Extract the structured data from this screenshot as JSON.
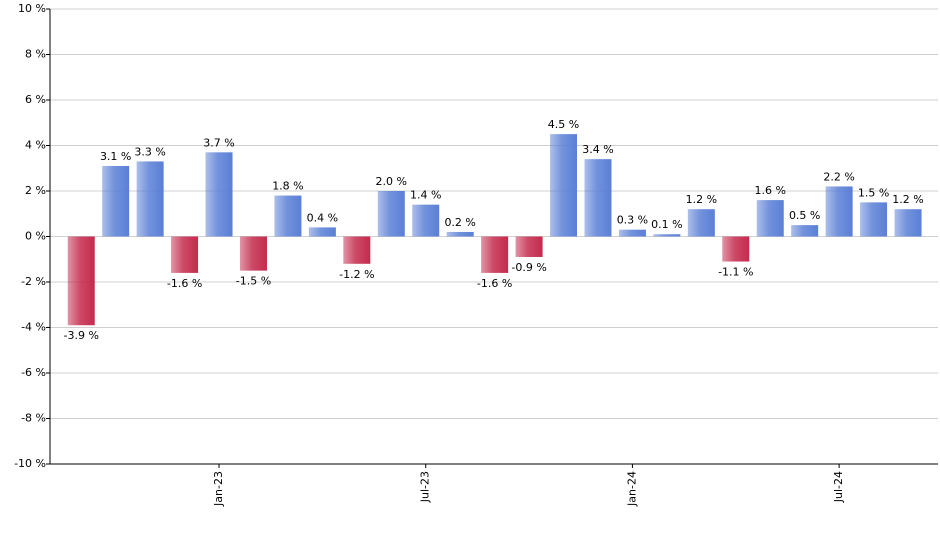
{
  "chart_data": {
    "type": "bar",
    "categories": [
      null,
      null,
      null,
      null,
      "Jan-23",
      null,
      null,
      null,
      null,
      null,
      "Jul-23",
      null,
      null,
      null,
      null,
      null,
      "Jan-24",
      null,
      null,
      null,
      null,
      null,
      "Jul-24",
      null,
      null
    ],
    "values": [
      -3.9,
      3.1,
      3.3,
      -1.6,
      3.7,
      -1.5,
      1.8,
      0.4,
      -1.2,
      2.0,
      1.4,
      0.2,
      -1.6,
      -0.9,
      4.5,
      3.4,
      0.3,
      0.1,
      1.2,
      -1.1,
      1.6,
      0.5,
      2.2,
      1.5,
      1.2
    ],
    "value_labels": [
      "-3.9 %",
      "3.1 %",
      "3.3 %",
      "-1.6 %",
      "3.7 %",
      "-1.5 %",
      "1.8 %",
      "0.4 %",
      "-1.2 %",
      "2.0 %",
      "1.4 %",
      "0.2 %",
      "-1.6 %",
      "-0.9 %",
      "4.5 %",
      "3.4 %",
      "0.3 %",
      "0.1 %",
      "1.2 %",
      "-1.1 %",
      "1.6 %",
      "0.5 %",
      "2.2 %",
      "1.5 %",
      "1.2 %"
    ],
    "color": "#5a7fd6",
    "negative_color": "#c42a4c",
    "ylim": [
      -10,
      10
    ],
    "yticks": [
      {
        "value": -10,
        "label": "-10 %"
      },
      {
        "value": -8,
        "label": "-8 %"
      },
      {
        "value": -6,
        "label": "-6 %"
      },
      {
        "value": -4,
        "label": "-4 %"
      },
      {
        "value": -2,
        "label": "-2 %"
      },
      {
        "value": 0,
        "label": "0 %"
      },
      {
        "value": 2,
        "label": "2 %"
      },
      {
        "value": 4,
        "label": "4 %"
      },
      {
        "value": 6,
        "label": "6 %"
      },
      {
        "value": 8,
        "label": "8 %"
      },
      {
        "value": 10,
        "label": "10 %"
      }
    ],
    "grid": true
  }
}
